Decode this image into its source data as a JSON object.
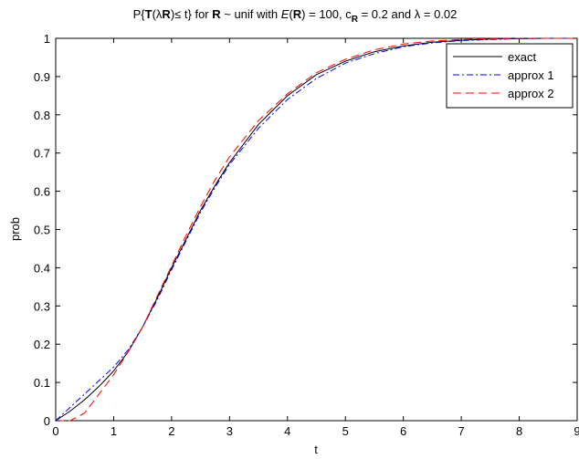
{
  "chart_data": {
    "type": "line",
    "title": {
      "part1": "P{",
      "part2": "T",
      "part3": "(λ",
      "part4": "R",
      "part5": ")≤ t} for ",
      "part6": "R",
      "part7": " ~ unif with ",
      "part8": "E",
      "part9": "(",
      "part10": "R",
      "part11": ") = 100, c",
      "part12": "R",
      "part13": " = 0.2 and λ = 0.02"
    },
    "xlabel": "t",
    "ylabel": "prob",
    "xlim": [
      0,
      9
    ],
    "ylim": [
      0,
      1
    ],
    "x_ticks": [
      "0",
      "1",
      "2",
      "3",
      "4",
      "5",
      "6",
      "7",
      "8",
      "9"
    ],
    "y_ticks": [
      "0",
      "0.1",
      "0.2",
      "0.3",
      "0.4",
      "0.5",
      "0.6",
      "0.7",
      "0.8",
      "0.9",
      "1"
    ],
    "grid": false,
    "legend_position": "top-right",
    "series": [
      {
        "name": "exact",
        "color": "#000000",
        "dash": "solid",
        "x": [
          0,
          0.25,
          0.5,
          0.75,
          1.0,
          1.25,
          1.5,
          1.75,
          2.0,
          2.25,
          2.5,
          2.75,
          3.0,
          3.5,
          4.0,
          4.5,
          5.0,
          5.5,
          6.0,
          6.5,
          7.0,
          7.5,
          8.0,
          8.5,
          9.0
        ],
        "y": [
          0,
          0.025,
          0.055,
          0.09,
          0.13,
          0.18,
          0.245,
          0.32,
          0.4,
          0.475,
          0.55,
          0.615,
          0.675,
          0.775,
          0.85,
          0.905,
          0.94,
          0.965,
          0.98,
          0.99,
          0.995,
          0.998,
          0.999,
          1.0,
          1.0
        ]
      },
      {
        "name": "approx 1",
        "color": "#0000ff",
        "dash": "dashdot",
        "x": [
          0,
          0.25,
          0.5,
          0.75,
          1.0,
          1.25,
          1.5,
          1.75,
          2.0,
          2.25,
          2.5,
          2.75,
          3.0,
          3.5,
          4.0,
          4.5,
          5.0,
          5.5,
          6.0,
          6.5,
          7.0,
          7.5,
          8.0,
          8.5,
          9.0
        ],
        "y": [
          0,
          0.035,
          0.07,
          0.105,
          0.14,
          0.185,
          0.245,
          0.315,
          0.395,
          0.47,
          0.545,
          0.61,
          0.67,
          0.765,
          0.84,
          0.895,
          0.935,
          0.96,
          0.978,
          0.988,
          0.994,
          0.997,
          0.999,
          1.0,
          1.0
        ]
      },
      {
        "name": "approx 2",
        "color": "#ff0000",
        "dash": "dashed",
        "x": [
          0,
          0.25,
          0.5,
          0.75,
          1.0,
          1.25,
          1.5,
          1.75,
          2.0,
          2.25,
          2.5,
          2.75,
          3.0,
          3.5,
          4.0,
          4.5,
          5.0,
          5.5,
          6.0,
          6.5,
          7.0,
          7.5,
          8.0,
          8.5,
          9.0
        ],
        "y": [
          0,
          0.0,
          0.02,
          0.07,
          0.12,
          0.18,
          0.245,
          0.325,
          0.405,
          0.485,
          0.56,
          0.63,
          0.69,
          0.785,
          0.855,
          0.91,
          0.945,
          0.97,
          0.985,
          0.993,
          0.997,
          0.999,
          1.0,
          1.0,
          1.0
        ]
      }
    ]
  }
}
